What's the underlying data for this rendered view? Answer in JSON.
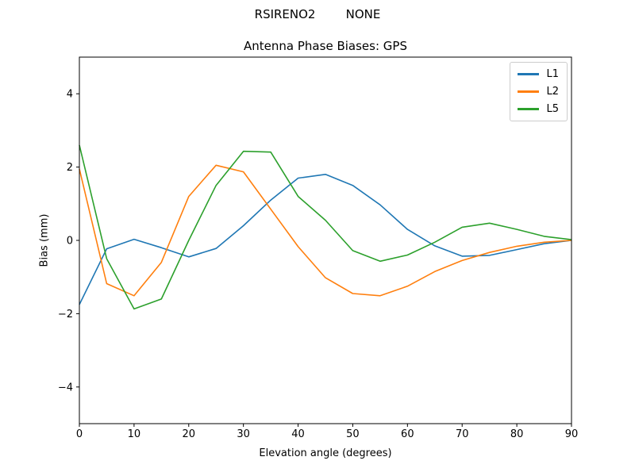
{
  "suptitle": "RSIRENO2        NONE",
  "chart_data": {
    "type": "line",
    "title": "Antenna Phase Biases: GPS",
    "xlabel": "Elevation angle (degrees)",
    "ylabel": "Bias (mm)",
    "xlim": [
      0,
      90
    ],
    "ylim": [
      -5,
      5
    ],
    "xticks": [
      0,
      10,
      20,
      30,
      40,
      50,
      60,
      70,
      80,
      90
    ],
    "yticks": [
      -4,
      -2,
      0,
      2,
      4
    ],
    "grid": false,
    "legend_position": "upper right",
    "x": [
      0,
      5,
      10,
      15,
      20,
      25,
      30,
      35,
      40,
      45,
      50,
      55,
      60,
      65,
      70,
      75,
      80,
      85,
      90
    ],
    "series": [
      {
        "name": "L1",
        "color": "#1f77b4",
        "values": [
          -1.75,
          -0.23,
          0.03,
          -0.2,
          -0.45,
          -0.22,
          0.4,
          1.1,
          1.7,
          1.8,
          1.5,
          0.97,
          0.3,
          -0.15,
          -0.43,
          -0.41,
          -0.25,
          -0.09,
          0.0
        ]
      },
      {
        "name": "L2",
        "color": "#ff7f0e",
        "values": [
          1.95,
          -1.18,
          -1.51,
          -0.6,
          1.2,
          2.05,
          1.87,
          0.85,
          -0.17,
          -1.02,
          -1.45,
          -1.51,
          -1.25,
          -0.85,
          -0.55,
          -0.33,
          -0.16,
          -0.05,
          0.0
        ]
      },
      {
        "name": "L5",
        "color": "#2ca02c",
        "values": [
          2.6,
          -0.5,
          -1.87,
          -1.6,
          0.0,
          1.5,
          2.43,
          2.41,
          1.2,
          0.55,
          -0.28,
          -0.57,
          -0.4,
          -0.05,
          0.36,
          0.47,
          0.3,
          0.11,
          0.02
        ]
      }
    ]
  }
}
